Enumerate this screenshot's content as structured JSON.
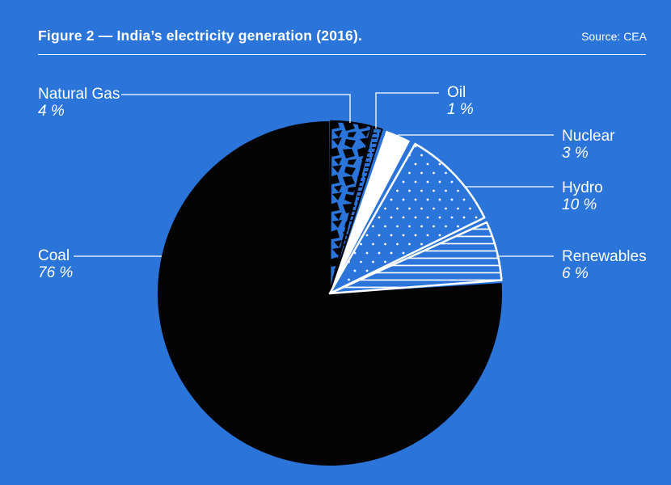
{
  "header": {
    "title": "Figure 2 — India’s electricity generation (2016).",
    "source": "Source: CEA"
  },
  "chart_data": {
    "type": "pie",
    "title": "India’s electricity generation (2016)",
    "unit": "percent",
    "start_angle_deg": 0,
    "direction": "clockwise",
    "legend_position": "callout-labels",
    "slices": [
      {
        "id": "natural_gas",
        "label": "Natural Gas",
        "value": 4,
        "pct_label": "4 %",
        "fill_style": "blue-with-black-crackle-pattern"
      },
      {
        "id": "oil",
        "label": "Oil",
        "value": 1,
        "pct_label": "1 %",
        "fill_style": "blue-with-black-ladder-hatch"
      },
      {
        "id": "nuclear",
        "label": "Nuclear",
        "value": 3,
        "pct_label": "3 %",
        "fill_style": "solid-white"
      },
      {
        "id": "hydro",
        "label": "Hydro",
        "value": 10,
        "pct_label": "10 %",
        "fill_style": "blue-with-white-dots"
      },
      {
        "id": "renewables",
        "label": "Renewables",
        "value": 6,
        "pct_label": "6 %",
        "fill_style": "blue-with-white-horizontal-lines"
      },
      {
        "id": "coal",
        "label": "Coal",
        "value": 76,
        "pct_label": "76 %",
        "fill_style": "solid-black"
      }
    ],
    "colors": {
      "background": "#2a74da",
      "ink_black": "#030303",
      "ink_white": "#ffffff"
    }
  }
}
